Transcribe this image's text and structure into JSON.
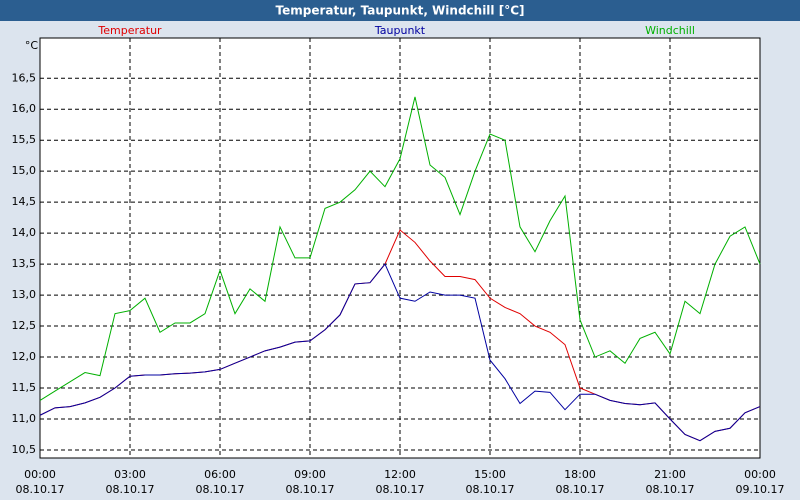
{
  "chart_data": {
    "type": "line",
    "title": "Temperatur, Taupunkt, Windchill [°C]",
    "y_unit": "°C",
    "x": [
      0,
      0.5,
      1,
      1.5,
      2,
      2.5,
      3,
      3.5,
      4,
      4.5,
      5,
      5.5,
      6,
      6.5,
      7,
      7.5,
      8,
      8.5,
      9,
      9.5,
      10,
      10.5,
      11,
      11.5,
      12,
      12.5,
      13,
      13.5,
      14,
      14.5,
      15,
      15.5,
      16,
      16.5,
      17,
      17.5,
      18,
      18.5,
      19,
      19.5,
      20,
      20.5,
      21,
      21.5,
      22,
      22.5,
      23,
      23.5,
      24
    ],
    "series": [
      {
        "name": "Temperatur",
        "color": "#e00000",
        "values": [
          11.06,
          11.18,
          11.2,
          11.26,
          11.35,
          11.5,
          11.69,
          11.71,
          11.71,
          11.73,
          11.74,
          11.76,
          11.8,
          11.9,
          12.0,
          12.1,
          12.16,
          12.24,
          12.26,
          12.44,
          12.68,
          13.18,
          13.2,
          13.5,
          14.05,
          13.85,
          13.55,
          13.3,
          13.3,
          13.25,
          12.95,
          12.8,
          12.7,
          12.5,
          12.4,
          12.2,
          11.5,
          11.4,
          11.3,
          11.25,
          11.23,
          11.26,
          11.0,
          10.75,
          10.65,
          10.8,
          10.85,
          11.1,
          11.2
        ]
      },
      {
        "name": "Taupunkt",
        "color": "#0000a0",
        "values": [
          11.06,
          11.18,
          11.2,
          11.26,
          11.35,
          11.5,
          11.69,
          11.71,
          11.71,
          11.73,
          11.74,
          11.76,
          11.8,
          11.9,
          12.0,
          12.1,
          12.16,
          12.24,
          12.26,
          12.44,
          12.68,
          13.18,
          13.2,
          13.5,
          12.95,
          12.9,
          13.05,
          13.0,
          13.0,
          12.95,
          11.95,
          11.65,
          11.25,
          11.45,
          11.43,
          11.15,
          11.4,
          11.4,
          11.3,
          11.25,
          11.23,
          11.26,
          11.0,
          10.75,
          10.65,
          10.8,
          10.85,
          11.1,
          11.2
        ]
      },
      {
        "name": "Windchill",
        "color": "#00b000",
        "values": [
          11.3,
          11.45,
          11.6,
          11.75,
          11.7,
          12.7,
          12.75,
          12.95,
          12.4,
          12.55,
          12.55,
          12.7,
          13.4,
          12.7,
          13.1,
          12.9,
          14.1,
          13.6,
          13.6,
          14.4,
          14.5,
          14.7,
          15.0,
          14.75,
          15.2,
          16.2,
          15.1,
          14.9,
          14.3,
          15.0,
          15.6,
          15.5,
          14.1,
          13.7,
          14.2,
          14.6,
          12.6,
          12.0,
          12.1,
          11.9,
          12.3,
          12.4,
          12.05,
          12.9,
          12.7,
          13.5,
          13.95,
          14.1,
          13.5
        ]
      }
    ],
    "xlim": [
      0,
      24
    ],
    "xticks": [
      {
        "value": 0,
        "label": "00:00"
      },
      {
        "value": 3,
        "label": "03:00"
      },
      {
        "value": 6,
        "label": "06:00"
      },
      {
        "value": 9,
        "label": "09:00"
      },
      {
        "value": 12,
        "label": "12:00"
      },
      {
        "value": 15,
        "label": "15:00"
      },
      {
        "value": 18,
        "label": "18:00"
      },
      {
        "value": 21,
        "label": "21:00"
      },
      {
        "value": 24,
        "label": "00:00"
      }
    ],
    "xtick_dates": [
      "08.10.17",
      "08.10.17",
      "08.10.17",
      "08.10.17",
      "08.10.17",
      "08.10.17",
      "08.10.17",
      "08.10.17",
      "09.10.17"
    ],
    "ylim": [
      10.37,
      17.15
    ],
    "yticks": [
      {
        "value": 10.5,
        "label": "10,5"
      },
      {
        "value": 11,
        "label": "11,0"
      },
      {
        "value": 11.5,
        "label": "11,5"
      },
      {
        "value": 12,
        "label": "12,0"
      },
      {
        "value": 12.5,
        "label": "12,5"
      },
      {
        "value": 13,
        "label": "13,0"
      },
      {
        "value": 13.5,
        "label": "13,5"
      },
      {
        "value": 14,
        "label": "14,0"
      },
      {
        "value": 14.5,
        "label": "14,5"
      },
      {
        "value": 15,
        "label": "15,0"
      },
      {
        "value": 15.5,
        "label": "15,5"
      },
      {
        "value": 16,
        "label": "16,0"
      },
      {
        "value": 16.5,
        "label": "16,5"
      }
    ],
    "grid": true
  }
}
